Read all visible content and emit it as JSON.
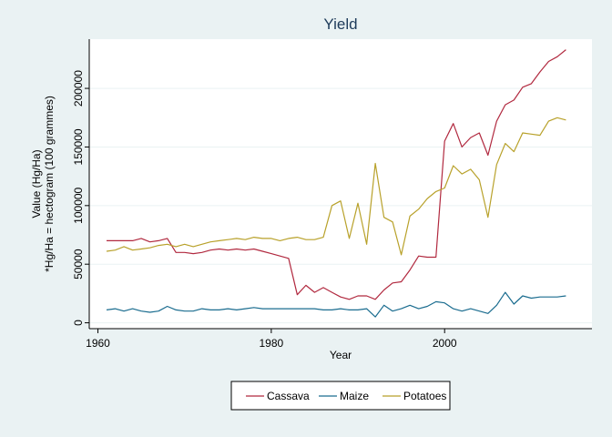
{
  "chart_data": {
    "type": "line",
    "title": "Yield",
    "xlabel": "Year",
    "ylabel_line1": "Value (Hg/Ha)",
    "ylabel_line2": "*Hg/Ha = hectogram (100 grammes)",
    "xlim": [
      1959,
      2017
    ],
    "ylim": [
      -5000,
      242000
    ],
    "x_ticks": [
      1960,
      1980,
      2000
    ],
    "y_ticks": [
      0,
      50000,
      100000,
      150000,
      200000
    ],
    "grid": true,
    "legend_position": "bottom",
    "x": [
      1961,
      1962,
      1963,
      1964,
      1965,
      1966,
      1967,
      1968,
      1969,
      1970,
      1971,
      1972,
      1973,
      1974,
      1975,
      1976,
      1977,
      1978,
      1979,
      1980,
      1981,
      1982,
      1983,
      1984,
      1985,
      1986,
      1987,
      1988,
      1989,
      1990,
      1991,
      1992,
      1993,
      1994,
      1995,
      1996,
      1997,
      1998,
      1999,
      2000,
      2001,
      2002,
      2003,
      2004,
      2005,
      2006,
      2007,
      2008,
      2009,
      2010,
      2011,
      2012,
      2013,
      2014
    ],
    "series": [
      {
        "name": "Cassava",
        "color": "#b1293f",
        "values": [
          70000,
          70000,
          70000,
          70000,
          72000,
          69000,
          70000,
          72000,
          60000,
          60000,
          59000,
          60000,
          62000,
          63000,
          62000,
          63000,
          62000,
          63000,
          61000,
          59000,
          57000,
          55000,
          24000,
          32000,
          26000,
          30000,
          26000,
          22000,
          20000,
          23000,
          23000,
          20000,
          28000,
          34000,
          35000,
          45000,
          57000,
          56000,
          56000,
          155000,
          170000,
          150000,
          158000,
          162000,
          143000,
          172000,
          186000,
          190000,
          201000,
          204000,
          214000,
          223000,
          227000,
          233000
        ]
      },
      {
        "name": "Maize",
        "color": "#1a6c8f",
        "values": [
          11000,
          12000,
          10000,
          12000,
          10000,
          9000,
          10000,
          14000,
          11000,
          10000,
          10000,
          12000,
          11000,
          11000,
          12000,
          11000,
          12000,
          13000,
          12000,
          12000,
          12000,
          12000,
          12000,
          12000,
          12000,
          11000,
          11000,
          12000,
          11000,
          11000,
          12000,
          5000,
          15000,
          10000,
          12000,
          15000,
          12000,
          14000,
          18000,
          17000,
          12000,
          10000,
          12000,
          10000,
          8000,
          15000,
          26000,
          16000,
          23000,
          21000,
          22000,
          22000,
          22000,
          23000
        ]
      },
      {
        "name": "Potatoes",
        "color": "#b8a12a",
        "values": [
          61000,
          62000,
          65000,
          62000,
          63000,
          64000,
          66000,
          67000,
          65000,
          67000,
          65000,
          67000,
          69000,
          70000,
          71000,
          72000,
          71000,
          73000,
          72000,
          72000,
          70000,
          72000,
          73000,
          71000,
          71000,
          73000,
          100000,
          104000,
          72000,
          102000,
          67000,
          136000,
          90000,
          86000,
          58000,
          91000,
          97000,
          106000,
          112000,
          115000,
          134000,
          127000,
          131000,
          122000,
          90000,
          135000,
          153000,
          146000,
          162000,
          161000,
          160000,
          172000,
          175000,
          173000
        ]
      }
    ]
  }
}
